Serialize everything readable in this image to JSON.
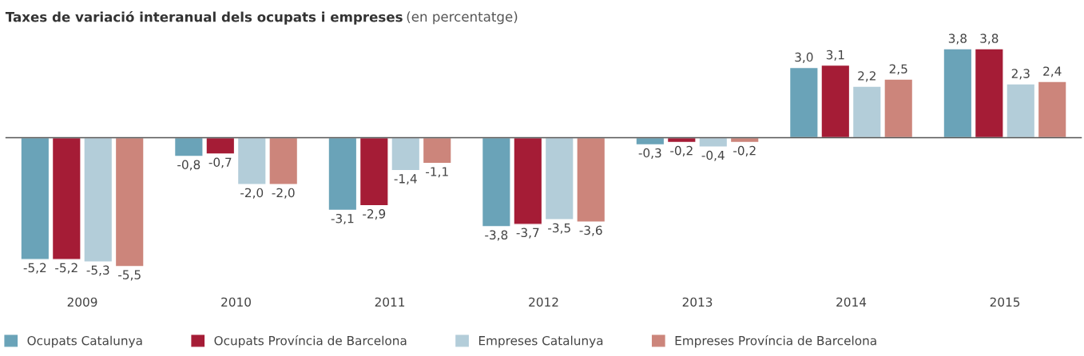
{
  "chart_data": {
    "type": "bar",
    "title": "Taxes de variació interanual dels ocupats i empreses",
    "subtitle": "(en percentatge)",
    "categories": [
      "2009",
      "2010",
      "2011",
      "2012",
      "2013",
      "2014",
      "2015"
    ],
    "series": [
      {
        "name": "Ocupats Catalunya",
        "color": "#6aa3b8",
        "values": [
          -5.2,
          -0.8,
          -3.1,
          -3.8,
          -0.3,
          3.0,
          3.8
        ],
        "value_labels": [
          "-5,2",
          "-0,8",
          "-3,1",
          "-3,8",
          "-0,3",
          "3,0",
          "3,8"
        ]
      },
      {
        "name": "Ocupats Província de Barcelona",
        "color": "#a51c36",
        "values": [
          -5.2,
          -0.7,
          -2.9,
          -3.7,
          -0.2,
          3.1,
          3.8
        ],
        "value_labels": [
          "-5,2",
          "-0,7",
          "-2,9",
          "-3,7",
          "-0,2",
          "3,1",
          "3,8"
        ]
      },
      {
        "name": "Empreses Catalunya",
        "color": "#b3cdd9",
        "values": [
          -5.3,
          -2.0,
          -1.4,
          -3.5,
          -0.4,
          2.2,
          2.3
        ],
        "value_labels": [
          "-5,3",
          "-2,0",
          "-1,4",
          "-3,5",
          "-0,4",
          "2,2",
          "2,3"
        ]
      },
      {
        "name": "Empreses Província de Barcelona",
        "color": "#cc857b",
        "values": [
          -5.5,
          -2.0,
          -1.1,
          -3.6,
          -0.2,
          2.5,
          2.4
        ],
        "value_labels": [
          "-5,5",
          "-2,0",
          "-1,1",
          "-3,6",
          "-0,2",
          "2,5",
          "2,4"
        ]
      }
    ],
    "legend": "bottom",
    "grid": false,
    "tick_labels": "x"
  }
}
